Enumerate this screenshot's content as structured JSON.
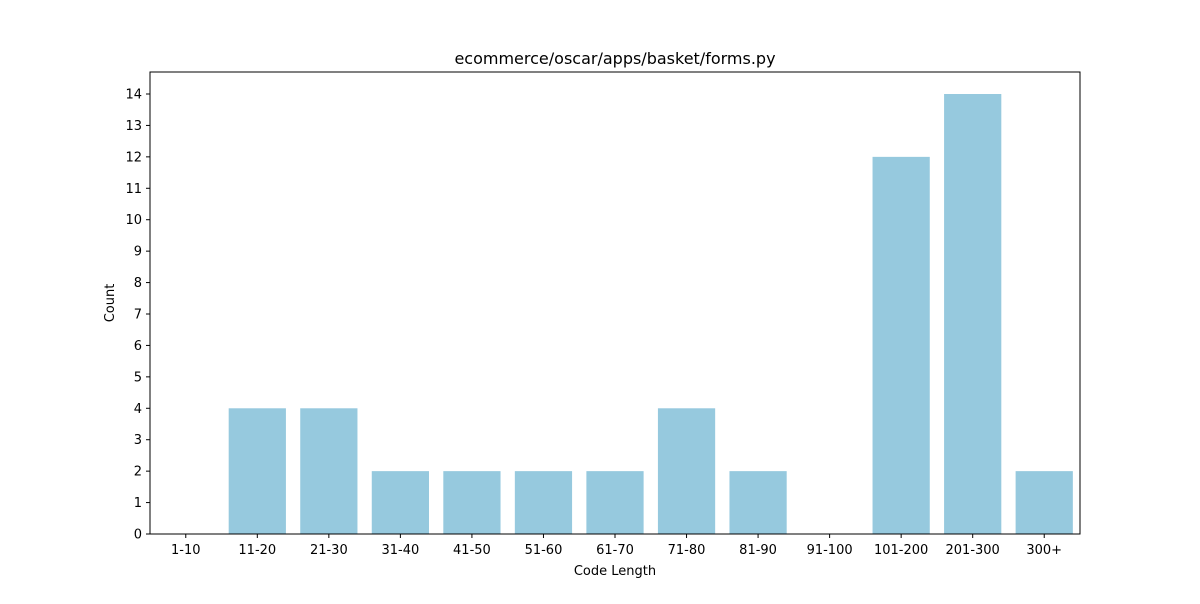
{
  "chart_data": {
    "type": "bar",
    "title": "ecommerce/oscar/apps/basket/forms.py",
    "xlabel": "Code Length",
    "ylabel": "Count",
    "categories": [
      "1-10",
      "11-20",
      "21-30",
      "31-40",
      "41-50",
      "51-60",
      "61-70",
      "71-80",
      "81-90",
      "91-100",
      "101-200",
      "201-300",
      "300+"
    ],
    "values": [
      0,
      4,
      4,
      2,
      2,
      2,
      2,
      4,
      2,
      0,
      12,
      14,
      2
    ],
    "ylim": [
      0,
      14.7
    ],
    "yticks": [
      0,
      1,
      2,
      3,
      4,
      5,
      6,
      7,
      8,
      9,
      10,
      11,
      12,
      13,
      14
    ],
    "grid": false,
    "bar_color": "#96c9de"
  }
}
